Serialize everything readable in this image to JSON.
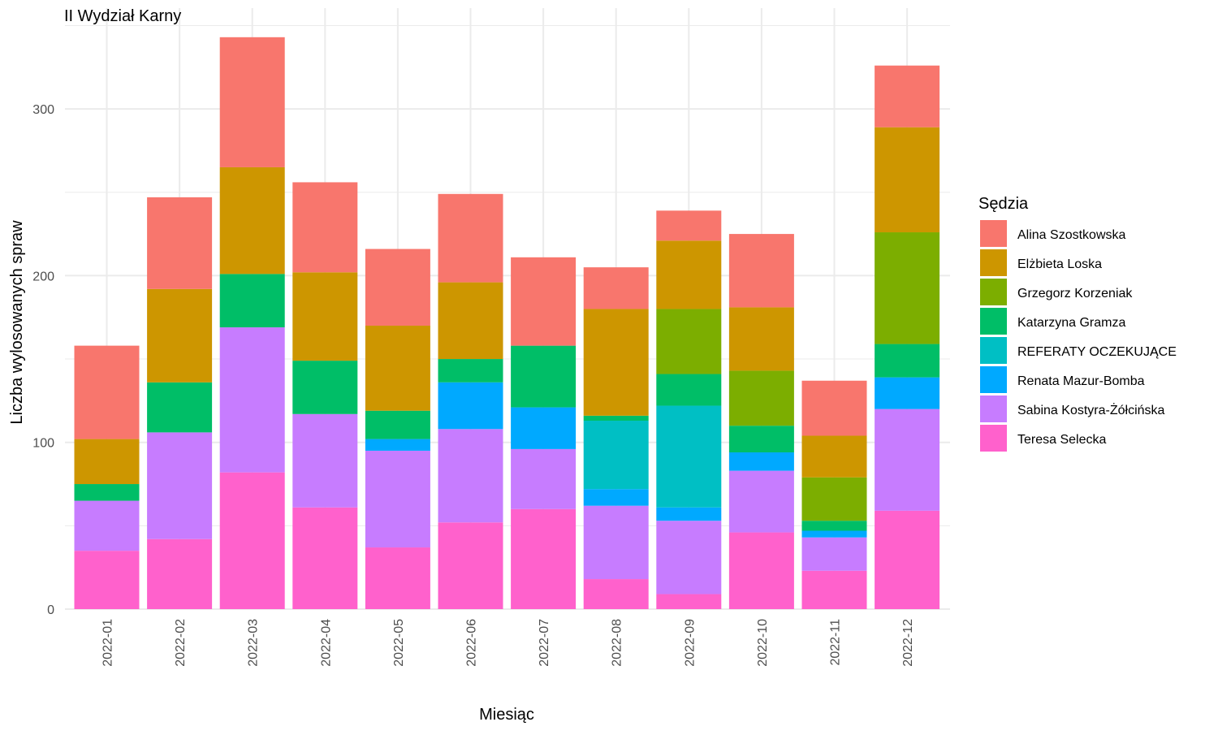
{
  "chart_data": {
    "type": "bar",
    "stacked": true,
    "title": "II Wydział Karny",
    "xlabel": "Miesiąc",
    "ylabel": "Liczba wylosowanych spraw",
    "ylim": [
      0,
      345
    ],
    "yticks": [
      0,
      100,
      200,
      300
    ],
    "grid": true,
    "legend": {
      "title": "Sędzia",
      "position": "right"
    },
    "categories": [
      "2022-01",
      "2022-02",
      "2022-03",
      "2022-04",
      "2022-05",
      "2022-06",
      "2022-07",
      "2022-08",
      "2022-09",
      "2022-10",
      "2022-11",
      "2022-12"
    ],
    "series": [
      {
        "name": "Alina Szostkowska",
        "color": "#F8766D",
        "values": [
          56,
          55,
          78,
          54,
          46,
          53,
          53,
          25,
          18,
          44,
          33,
          37
        ]
      },
      {
        "name": "Elżbieta Loska",
        "color": "#CD9600",
        "values": [
          27,
          56,
          64,
          53,
          51,
          46,
          0,
          64,
          41,
          38,
          25,
          63
        ]
      },
      {
        "name": "Grzegorz Korzeniak",
        "color": "#7CAE00",
        "values": [
          0,
          0,
          0,
          0,
          0,
          0,
          0,
          0,
          39,
          33,
          26,
          67
        ]
      },
      {
        "name": "Katarzyna Gramza",
        "color": "#00BE67",
        "values": [
          10,
          30,
          32,
          32,
          17,
          14,
          37,
          3,
          19,
          16,
          6,
          20
        ]
      },
      {
        "name": "REFERATY OCZEKUJĄCE",
        "color": "#00BFC4",
        "values": [
          0,
          0,
          0,
          0,
          0,
          0,
          0,
          41,
          61,
          0,
          0,
          0
        ]
      },
      {
        "name": "Renata Mazur-Bomba",
        "color": "#00A9FF",
        "values": [
          0,
          0,
          0,
          0,
          7,
          28,
          25,
          10,
          8,
          11,
          4,
          19
        ]
      },
      {
        "name": "Sabina Kostyra-Żółcińska",
        "color": "#C77CFF",
        "values": [
          30,
          64,
          87,
          56,
          58,
          56,
          36,
          44,
          44,
          37,
          20,
          61
        ]
      },
      {
        "name": "Teresa Selecka",
        "color": "#FF61CC",
        "values": [
          35,
          42,
          82,
          61,
          37,
          52,
          60,
          18,
          9,
          46,
          23,
          59
        ]
      }
    ]
  }
}
